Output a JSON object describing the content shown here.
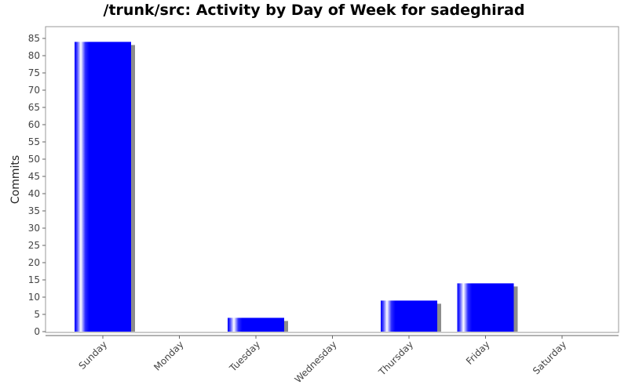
{
  "chart_data": {
    "type": "bar",
    "title": "/trunk/src: Activity by Day of Week for sadeghirad",
    "xlabel": "",
    "ylabel": "Commits",
    "categories": [
      "Sunday",
      "Monday",
      "Tuesday",
      "Wednesday",
      "Thursday",
      "Friday",
      "Saturday"
    ],
    "values": [
      84,
      0,
      4,
      0,
      9,
      14,
      0
    ],
    "ylim": [
      0,
      87
    ],
    "yticks": [
      0,
      5,
      10,
      15,
      20,
      25,
      30,
      35,
      40,
      45,
      50,
      55,
      60,
      65,
      70,
      75,
      80,
      85
    ],
    "grid": false,
    "legend": "none",
    "colors": {
      "bar": "#0000ff",
      "bar_highlight": "#ffffff",
      "shadow": "#8c8c8c",
      "plot_border": "#999999",
      "axis": "#666666"
    }
  }
}
